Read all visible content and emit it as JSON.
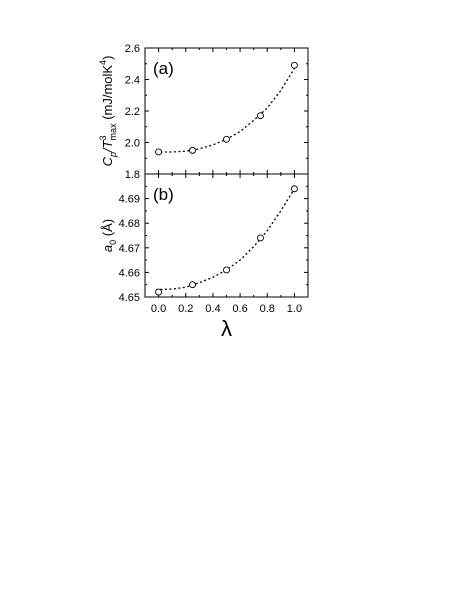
{
  "chart_data": [
    {
      "type": "scatter",
      "panel_label": "(a)",
      "ylabel": "C_p/T^3_max (mJ/molK^4)",
      "ylabel_parts": {
        "base": "C",
        "sub1": "p",
        "slash": "/T",
        "sup": "3",
        "sub2": "max",
        "unit": " (mJ/molK",
        "unit_sup": "4",
        "close": ")"
      },
      "xlim": [
        -0.1,
        1.1
      ],
      "ylim": [
        1.8,
        2.6
      ],
      "x_ticks": [
        0.0,
        0.2,
        0.4,
        0.6,
        0.8,
        1.0
      ],
      "y_ticks": [
        1.8,
        2.0,
        2.2,
        2.4,
        2.6
      ],
      "y_tick_labels": [
        "1.8",
        "2.0",
        "2.2",
        "2.4",
        "2.6"
      ],
      "markers": "open-circle",
      "fit_line": "dotted",
      "points": {
        "x": [
          0.0,
          0.25,
          0.5,
          0.75,
          1.0
        ],
        "y": [
          1.94,
          1.95,
          2.02,
          2.17,
          2.49
        ]
      },
      "fit": {
        "x": [
          -0.02,
          0.1,
          0.2,
          0.3,
          0.4,
          0.5,
          0.6,
          0.7,
          0.8,
          0.9,
          1.0
        ],
        "y": [
          1.94,
          1.94,
          1.945,
          1.96,
          1.985,
          2.02,
          2.07,
          2.14,
          2.22,
          2.33,
          2.47
        ]
      }
    },
    {
      "type": "scatter",
      "panel_label": "(b)",
      "ylabel": "a_0 (Å)",
      "ylabel_parts": {
        "base": "a",
        "sub": "0",
        "unit": " (Å)"
      },
      "xlabel": "λ",
      "xlim": [
        -0.1,
        1.1
      ],
      "ylim": [
        4.65,
        4.7
      ],
      "x_ticks": [
        0.0,
        0.2,
        0.4,
        0.6,
        0.8,
        1.0
      ],
      "x_tick_labels": [
        "0.0",
        "0.2",
        "0.4",
        "0.6",
        "0.8",
        "1.0"
      ],
      "y_ticks": [
        4.65,
        4.66,
        4.67,
        4.68,
        4.69
      ],
      "y_tick_labels": [
        "4.65",
        "4.66",
        "4.67",
        "4.68",
        "4.69"
      ],
      "markers": "open-circle",
      "fit_line": "dotted",
      "points": {
        "x": [
          0.0,
          0.25,
          0.5,
          0.75,
          1.0
        ],
        "y": [
          4.652,
          4.655,
          4.661,
          4.674,
          4.694
        ]
      },
      "fit": {
        "x": [
          -0.02,
          0.1,
          0.2,
          0.3,
          0.4,
          0.5,
          0.6,
          0.7,
          0.8,
          0.9,
          1.0
        ],
        "y": [
          4.653,
          4.6532,
          4.654,
          4.6558,
          4.658,
          4.661,
          4.665,
          4.6705,
          4.677,
          4.685,
          4.694
        ]
      }
    }
  ]
}
